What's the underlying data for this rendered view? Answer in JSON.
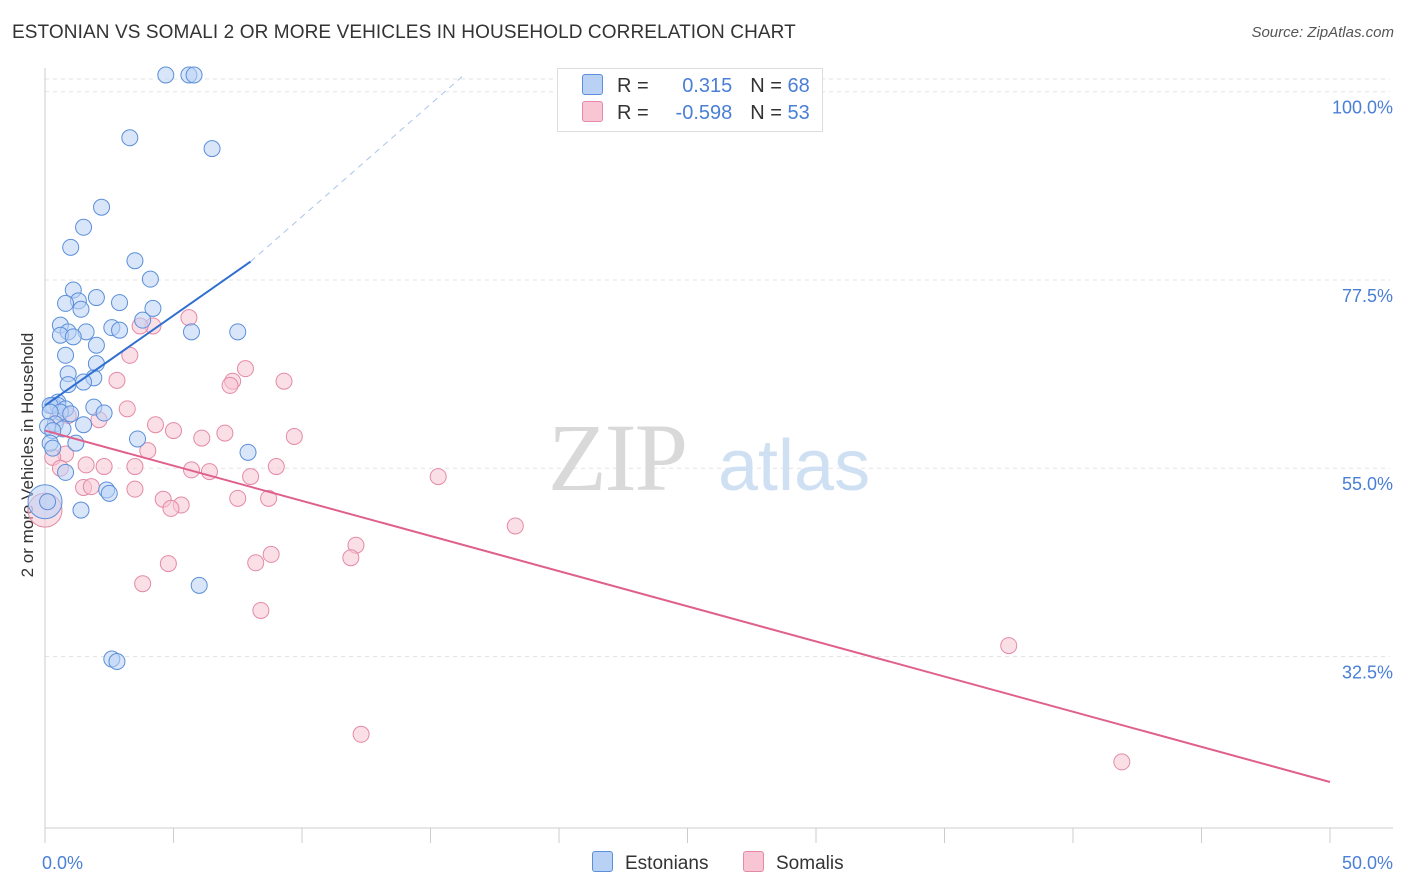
{
  "header": {
    "title": "ESTONIAN VS SOMALI 2 OR MORE VEHICLES IN HOUSEHOLD CORRELATION CHART",
    "source": "Source: ZipAtlas.com"
  },
  "legend": {
    "rows": [
      {
        "r_label": "R =",
        "r_value": "0.315",
        "n_label": "N =",
        "n_value": "68"
      },
      {
        "r_label": "R =",
        "r_value": "-0.598",
        "n_label": "N =",
        "n_value": "53"
      }
    ]
  },
  "bottom_legend": {
    "items": [
      "Estonians",
      "Somalis"
    ]
  },
  "watermark": {
    "zip": "ZIP",
    "atlas": "atlas"
  },
  "colors": {
    "estonians_fill": "#b9d1f5",
    "estonians_stroke": "#5b8fd9",
    "estonians_line": "#2f6fd0",
    "somalis_fill": "#f8c5d4",
    "somalis_stroke": "#e48aa6",
    "somalis_line": "#e0608d",
    "tick_text": "#4a7fd6"
  },
  "chart_data": {
    "type": "scatter",
    "title": "ESTONIAN VS SOMALI 2 OR MORE VEHICLES IN HOUSEHOLD CORRELATION CHART",
    "xlabel": "",
    "ylabel": "2 or more Vehicles in Household",
    "xlim": [
      0,
      50
    ],
    "ylim": [
      12,
      102
    ],
    "x_tick_labels": [
      "0.0%",
      "50.0%"
    ],
    "y_ticks": [
      32.5,
      55.0,
      77.5,
      100.0
    ],
    "y_tick_labels": [
      "32.5%",
      "55.0%",
      "77.5%",
      "100.0%"
    ],
    "grid": true,
    "series": [
      {
        "name": "Estonians",
        "r": 0.315,
        "n": 68,
        "trend": {
          "x": [
            0,
            8
          ],
          "y": [
            62.5,
            79.7
          ]
        },
        "trend_dashed": {
          "x": [
            8,
            16.3
          ],
          "y": [
            79.7,
            102
          ]
        },
        "points": [
          [
            4.7,
            102
          ],
          [
            5.6,
            102
          ],
          [
            5.8,
            102
          ],
          [
            3.3,
            94.5
          ],
          [
            6.5,
            93.2
          ],
          [
            2.2,
            86.2
          ],
          [
            1.5,
            83.8
          ],
          [
            3.5,
            79.8
          ],
          [
            1.0,
            81.4
          ],
          [
            4.1,
            77.6
          ],
          [
            1.1,
            76.3
          ],
          [
            2.0,
            75.4
          ],
          [
            1.3,
            75.0
          ],
          [
            0.8,
            74.7
          ],
          [
            2.9,
            74.8
          ],
          [
            1.4,
            74.0
          ],
          [
            4.2,
            74.1
          ],
          [
            3.8,
            72.7
          ],
          [
            0.6,
            72.1
          ],
          [
            2.6,
            71.8
          ],
          [
            1.6,
            71.3
          ],
          [
            2.9,
            71.5
          ],
          [
            0.9,
            71.3
          ],
          [
            0.6,
            70.9
          ],
          [
            1.1,
            70.7
          ],
          [
            5.7,
            71.3
          ],
          [
            7.5,
            71.3
          ],
          [
            2.0,
            69.7
          ],
          [
            0.8,
            68.5
          ],
          [
            2.0,
            67.5
          ],
          [
            0.9,
            66.3
          ],
          [
            1.9,
            65.8
          ],
          [
            0.9,
            65.0
          ],
          [
            1.5,
            65.3
          ],
          [
            0.5,
            62.9
          ],
          [
            1.9,
            62.3
          ],
          [
            0.3,
            62.5
          ],
          [
            0.5,
            62.5
          ],
          [
            0.2,
            62.5
          ],
          [
            0.8,
            62.1
          ],
          [
            0.6,
            61.7
          ],
          [
            0.2,
            61.7
          ],
          [
            1.0,
            61.5
          ],
          [
            2.3,
            61.6
          ],
          [
            0.4,
            60.3
          ],
          [
            0.7,
            59.7
          ],
          [
            1.5,
            60.2
          ],
          [
            0.1,
            60.0
          ],
          [
            0.3,
            59.5
          ],
          [
            3.6,
            58.5
          ],
          [
            0.2,
            58.0
          ],
          [
            1.2,
            58.0
          ],
          [
            7.9,
            56.9
          ],
          [
            0.3,
            57.4
          ],
          [
            0.8,
            54.5
          ],
          [
            2.4,
            52.4
          ],
          [
            2.5,
            52.0
          ],
          [
            1.4,
            50.0
          ],
          [
            0.1,
            51.0
          ],
          [
            6.0,
            41.0
          ],
          [
            2.6,
            32.2
          ],
          [
            2.8,
            31.9
          ]
        ],
        "large_point": [
          0.0,
          51.0
        ]
      },
      {
        "name": "Somalis",
        "r": -0.598,
        "n": 53,
        "trend": {
          "x": [
            0,
            50
          ],
          "y": [
            59.5,
            17.5
          ]
        },
        "points": [
          [
            5.6,
            73.0
          ],
          [
            4.2,
            72.0
          ],
          [
            3.7,
            72.0
          ],
          [
            3.3,
            68.5
          ],
          [
            7.8,
            66.9
          ],
          [
            2.8,
            65.5
          ],
          [
            7.3,
            65.4
          ],
          [
            9.3,
            65.4
          ],
          [
            7.2,
            64.9
          ],
          [
            3.2,
            62.1
          ],
          [
            0.9,
            61.3
          ],
          [
            2.1,
            60.8
          ],
          [
            0.5,
            61.0
          ],
          [
            4.3,
            60.2
          ],
          [
            5.0,
            59.5
          ],
          [
            7.0,
            59.2
          ],
          [
            6.1,
            58.6
          ],
          [
            9.7,
            58.8
          ],
          [
            4.0,
            57.1
          ],
          [
            0.8,
            56.7
          ],
          [
            0.3,
            56.3
          ],
          [
            0.6,
            55.0
          ],
          [
            1.6,
            55.4
          ],
          [
            2.3,
            55.2
          ],
          [
            3.5,
            55.2
          ],
          [
            5.7,
            54.8
          ],
          [
            6.4,
            54.6
          ],
          [
            9.0,
            55.2
          ],
          [
            8.0,
            54.0
          ],
          [
            15.3,
            54.0
          ],
          [
            1.5,
            52.7
          ],
          [
            1.8,
            52.8
          ],
          [
            3.5,
            52.5
          ],
          [
            4.6,
            51.3
          ],
          [
            5.3,
            50.6
          ],
          [
            4.9,
            50.2
          ],
          [
            7.5,
            51.4
          ],
          [
            8.7,
            51.4
          ],
          [
            18.3,
            48.1
          ],
          [
            12.1,
            45.8
          ],
          [
            11.9,
            44.3
          ],
          [
            8.8,
            44.7
          ],
          [
            4.8,
            43.6
          ],
          [
            8.2,
            43.7
          ],
          [
            3.8,
            41.2
          ],
          [
            8.4,
            38.0
          ],
          [
            37.5,
            33.8
          ],
          [
            12.3,
            23.2
          ],
          [
            41.9,
            19.9
          ]
        ],
        "large_point": [
          0.0,
          50.0
        ]
      }
    ]
  }
}
